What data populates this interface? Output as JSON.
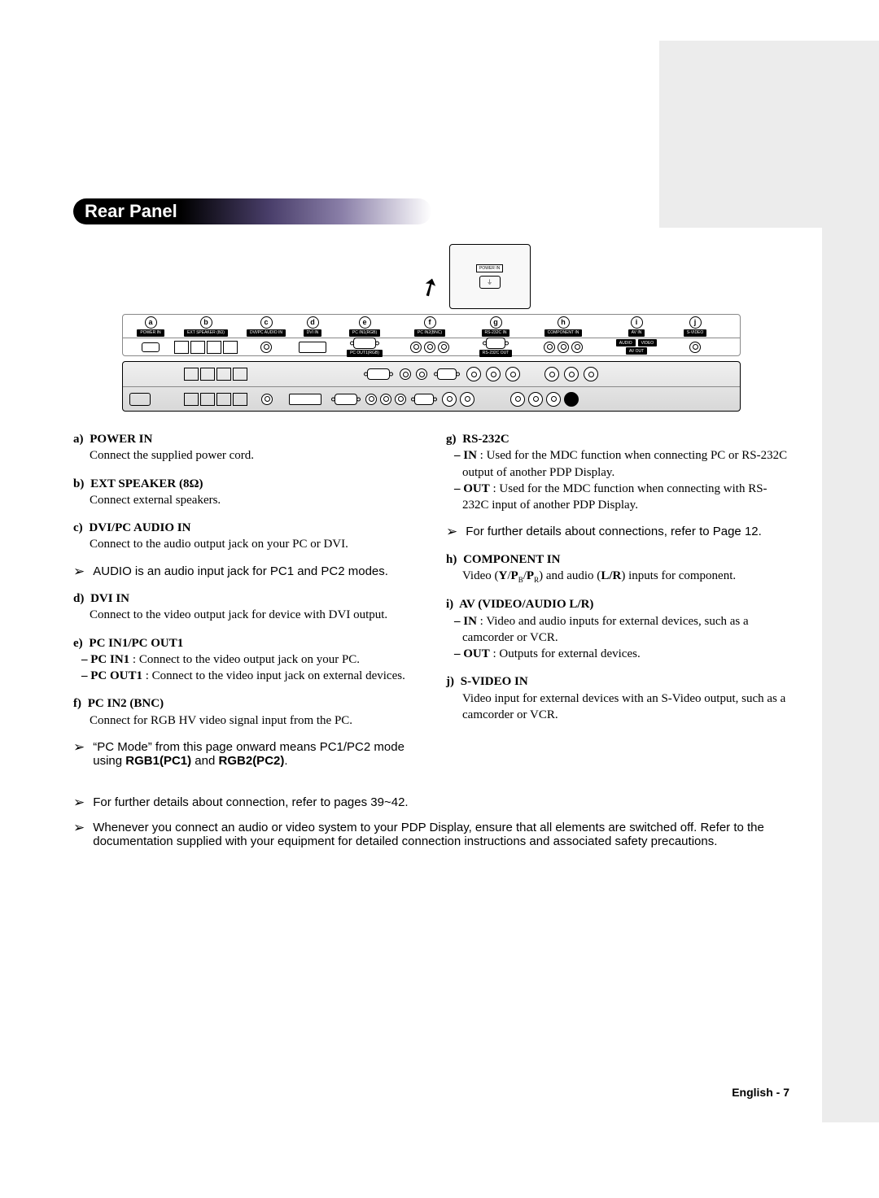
{
  "title": "Rear Panel",
  "page_footer": "English - 7",
  "colors": {
    "grey_bg": "#ececec",
    "title_gradient_start": "#000000",
    "title_gradient_mid": "#4a3f6b",
    "title_gradient_end": "#ffffff"
  },
  "fonts": {
    "title_family": "Arial",
    "title_size_pt": 16,
    "body_family": "Georgia",
    "body_size_pt": 11,
    "note_family": "Arial"
  },
  "zoom_label": "POWER IN",
  "port_labels": [
    "a",
    "b",
    "c",
    "d",
    "e",
    "f",
    "g",
    "h",
    "i",
    "j"
  ],
  "port_header_blocks": {
    "a": "POWER IN",
    "b": "EXT SPEAKER (8Ω)",
    "c": "DVI/PC AUDIO IN",
    "d": "DVI IN",
    "e_top": "PC IN1(RGB)",
    "e_bottom": "PC OUT1(RGB)",
    "f": "PC IN2(BNC)",
    "g_top": "RS-232C IN",
    "g_bottom": "RS-232C OUT",
    "h": "COMPONENT IN",
    "i": "AV IN",
    "i_sub_audio": "AUDIO",
    "i_sub_video": "VIDEO",
    "i_out": "AV OUT",
    "j": "S-VIDEO"
  },
  "left_col": [
    {
      "letter": "a)",
      "label": "POWER IN",
      "body": "Connect the supplied power cord."
    },
    {
      "letter": "b)",
      "label": "EXT SPEAKER (8Ω)",
      "body": "Connect external speakers."
    },
    {
      "letter": "c)",
      "label": "DVI/PC AUDIO IN",
      "body": "Connect to the audio output jack on your PC or DVI."
    },
    {
      "note": "AUDIO is an audio input jack for PC1 and PC2 modes."
    },
    {
      "letter": "d)",
      "label": "DVI IN",
      "body": "Connect to the video output jack for device with DVI output."
    },
    {
      "letter": "e)",
      "label": "PC IN1/PC OUT1",
      "subs": [
        {
          "tag": "PC IN1",
          "text": ": Connect to the video output jack on your PC."
        },
        {
          "tag": "PC OUT1",
          "text": ": Connect to the video input jack on external devices."
        }
      ]
    },
    {
      "letter": "f)",
      "label": "PC IN2 (BNC)",
      "body": "Connect for RGB HV video signal input from the PC."
    },
    {
      "note_html": "“PC Mode” from this page onward means PC1/PC2 mode using <b>RGB1(PC1)</b> and <b>RGB2(PC2)</b>."
    }
  ],
  "right_col": [
    {
      "letter": "g)",
      "label": "RS-232C",
      "subs": [
        {
          "tag": "IN",
          "text": ": Used for the MDC function when connecting PC or RS-232C output of another PDP Display."
        },
        {
          "tag": "OUT",
          "text": ": Used for the MDC function when connecting with RS-232C input of another PDP Display."
        }
      ]
    },
    {
      "note": "For further details about connections, refer to Page 12."
    },
    {
      "letter": "h)",
      "label": "COMPONENT IN",
      "body_html": "Video (<b>Y</b>/<b>P</b><sub style='font-size:9px'>B</sub>/<b>P</b><sub style='font-size:9px'>R</sub>) and audio (<b>L/R</b>) inputs for component."
    },
    {
      "letter": "i)",
      "label": "AV (VIDEO/AUDIO L/R)",
      "subs": [
        {
          "tag": "IN",
          "text": ": Video and audio inputs for external devices, such as a camcorder or VCR."
        },
        {
          "tag": "OUT",
          "text": ": Outputs for external devices."
        }
      ]
    },
    {
      "letter": "j)",
      "label": "S-VIDEO IN",
      "body": "Video input for external devices with an S-Video output, such as a camcorder or VCR."
    }
  ],
  "bottom_notes": [
    "For further details about connection, refer to pages 39~42.",
    "Whenever you connect an audio or video system to your PDP Display, ensure that all elements are switched off. Refer to the documentation supplied with your equipment  for detailed connection instructions and associated safety precautions."
  ]
}
